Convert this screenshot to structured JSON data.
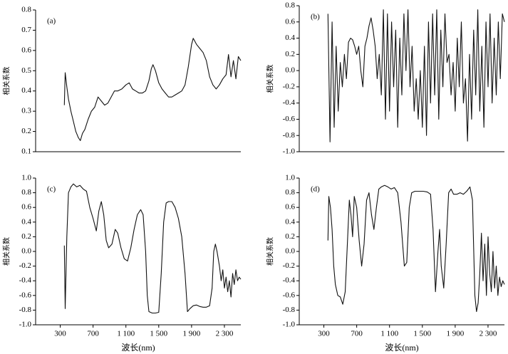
{
  "chart_data": [
    {
      "type": "line",
      "annotation": "(a)",
      "ylabel": "相关系数",
      "color": "#111111",
      "xlim": [
        0,
        2500
      ],
      "ylim": [
        0.1,
        0.8
      ],
      "yticks": [
        0.1,
        0.2,
        0.3,
        0.4,
        0.5,
        0.6,
        0.7,
        0.8
      ],
      "x": [
        350,
        360,
        380,
        400,
        430,
        460,
        490,
        520,
        545,
        570,
        600,
        640,
        680,
        720,
        760,
        800,
        840,
        880,
        920,
        960,
        1000,
        1050,
        1100,
        1140,
        1180,
        1220,
        1260,
        1300,
        1340,
        1380,
        1410,
        1430,
        1460,
        1500,
        1540,
        1580,
        1620,
        1660,
        1700,
        1740,
        1780,
        1820,
        1860,
        1900,
        1920,
        1960,
        2000,
        2040,
        2080,
        2120,
        2160,
        2200,
        2240,
        2280,
        2320,
        2350,
        2380,
        2410,
        2440,
        2470,
        2500
      ],
      "values": [
        0.33,
        0.49,
        0.42,
        0.36,
        0.3,
        0.25,
        0.2,
        0.17,
        0.155,
        0.19,
        0.21,
        0.26,
        0.3,
        0.32,
        0.37,
        0.35,
        0.33,
        0.34,
        0.37,
        0.4,
        0.4,
        0.41,
        0.43,
        0.44,
        0.41,
        0.4,
        0.39,
        0.39,
        0.4,
        0.45,
        0.51,
        0.53,
        0.5,
        0.44,
        0.41,
        0.39,
        0.37,
        0.37,
        0.38,
        0.39,
        0.4,
        0.43,
        0.52,
        0.63,
        0.66,
        0.63,
        0.61,
        0.59,
        0.55,
        0.47,
        0.43,
        0.41,
        0.43,
        0.46,
        0.48,
        0.58,
        0.47,
        0.55,
        0.46,
        0.57,
        0.55
      ]
    },
    {
      "type": "line",
      "annotation": "(b)",
      "ylabel": "相关系数",
      "color": "#111111",
      "xlim": [
        0,
        2500
      ],
      "ylim": [
        -1,
        0.8
      ],
      "yticks": [
        {
          "value": -1,
          "label": "-1.0"
        },
        -0.8,
        -0.6,
        -0.4,
        -0.2,
        {
          "value": 0,
          "label": "0.0"
        },
        0.2,
        0.4,
        0.6,
        0.8
      ],
      "x": [
        350,
        375,
        400,
        425,
        450,
        475,
        500,
        525,
        550,
        575,
        600,
        625,
        650,
        675,
        700,
        725,
        750,
        775,
        800,
        825,
        850,
        875,
        900,
        925,
        950,
        975,
        1000,
        1025,
        1050,
        1075,
        1100,
        1125,
        1150,
        1175,
        1200,
        1225,
        1250,
        1275,
        1300,
        1325,
        1350,
        1375,
        1400,
        1425,
        1450,
        1475,
        1500,
        1525,
        1550,
        1575,
        1600,
        1625,
        1650,
        1675,
        1700,
        1725,
        1750,
        1775,
        1800,
        1825,
        1850,
        1875,
        1900,
        1925,
        1950,
        1975,
        2000,
        2025,
        2050,
        2075,
        2100,
        2125,
        2150,
        2175,
        2200,
        2225,
        2250,
        2275,
        2300,
        2325,
        2350,
        2375,
        2400,
        2425,
        2450,
        2475,
        2500
      ],
      "values": [
        0.7,
        -0.88,
        0.6,
        -0.7,
        0.3,
        -0.5,
        0.1,
        -0.2,
        0.2,
        -0.1,
        0.35,
        0.4,
        0.38,
        0.3,
        0.2,
        0.3,
        0.0,
        -0.2,
        0.3,
        0.4,
        0.55,
        0.65,
        0.5,
        0.3,
        -0.1,
        0.2,
        -0.3,
        0.75,
        -0.6,
        0.7,
        -0.5,
        0.6,
        -0.2,
        0.5,
        -0.7,
        0.4,
        -0.3,
        0.7,
        0.0,
        0.75,
        -0.2,
        0.3,
        -0.5,
        -0.1,
        -0.6,
        0.0,
        -0.7,
        0.3,
        -0.8,
        0.6,
        -0.4,
        0.7,
        -0.3,
        0.75,
        -0.6,
        0.5,
        -0.2,
        0.7,
        0.1,
        0.2,
        -0.3,
        0.1,
        -0.5,
        0.4,
        -0.2,
        0.6,
        -0.4,
        -0.1,
        -0.87,
        0.2,
        -0.6,
        0.5,
        -0.3,
        0.75,
        -0.5,
        0.3,
        -0.7,
        0.6,
        -0.2,
        0.7,
        -0.4,
        0.4,
        -0.3,
        0.6,
        -0.1,
        0.7,
        0.6
      ]
    },
    {
      "type": "line",
      "annotation": "(c)",
      "ylabel": "相关系数",
      "xlabel": "波长(nm)",
      "color": "#111111",
      "xlim": [
        0,
        2500
      ],
      "xticks": [
        300,
        700,
        {
          "value": 1100,
          "label": "1 100"
        },
        {
          "value": 1500,
          "label": "1 500"
        },
        {
          "value": 1900,
          "label": "1 900"
        },
        {
          "value": 2300,
          "label": "2 300"
        }
      ],
      "ylim": [
        -1,
        1
      ],
      "yticks": [
        {
          "value": -1,
          "label": "-1.0"
        },
        -0.8,
        -0.6,
        -0.4,
        -0.2,
        {
          "value": 0,
          "label": "0.0"
        },
        0.2,
        0.4,
        0.6,
        0.8,
        {
          "value": 1,
          "label": "1.0"
        }
      ],
      "x": [
        350,
        360,
        380,
        400,
        430,
        460,
        500,
        540,
        580,
        620,
        660,
        700,
        740,
        770,
        800,
        830,
        860,
        890,
        930,
        970,
        1000,
        1040,
        1080,
        1120,
        1160,
        1200,
        1240,
        1280,
        1310,
        1340,
        1360,
        1380,
        1420,
        1460,
        1500,
        1530,
        1560,
        1590,
        1620,
        1660,
        1700,
        1740,
        1780,
        1820,
        1850,
        1880,
        1920,
        1960,
        2000,
        2040,
        2080,
        2120,
        2150,
        2170,
        2190,
        2210,
        2240,
        2260,
        2280,
        2300,
        2320,
        2340,
        2360,
        2380,
        2400,
        2420,
        2440,
        2460,
        2480,
        2500
      ],
      "values": [
        0.08,
        -0.78,
        0.2,
        0.8,
        0.88,
        0.92,
        0.88,
        0.9,
        0.85,
        0.82,
        0.6,
        0.45,
        0.28,
        0.55,
        0.68,
        0.5,
        0.15,
        0.05,
        0.1,
        0.3,
        0.25,
        0.05,
        -0.1,
        -0.13,
        0.05,
        0.3,
        0.5,
        0.57,
        0.5,
        0.0,
        -0.6,
        -0.82,
        -0.84,
        -0.84,
        -0.83,
        -0.3,
        0.4,
        0.66,
        0.68,
        0.68,
        0.6,
        0.45,
        0.2,
        -0.3,
        -0.82,
        -0.78,
        -0.74,
        -0.73,
        -0.75,
        -0.76,
        -0.76,
        -0.74,
        -0.5,
        0.0,
        0.1,
        0.0,
        -0.2,
        -0.4,
        -0.25,
        -0.5,
        -0.35,
        -0.55,
        -0.4,
        -0.62,
        -0.3,
        -0.45,
        -0.25,
        -0.4,
        -0.35,
        -0.38
      ]
    },
    {
      "type": "line",
      "annotation": "(d)",
      "ylabel": "相关系数",
      "xlabel": "波长(nm)",
      "color": "#111111",
      "xlim": [
        0,
        2500
      ],
      "xticks": [
        300,
        700,
        {
          "value": 1100,
          "label": "1 100"
        },
        {
          "value": 1500,
          "label": "1 500"
        },
        {
          "value": 1900,
          "label": "1 900"
        },
        {
          "value": 2300,
          "label": "2 300"
        }
      ],
      "ylim": [
        -1,
        1
      ],
      "yticks": [
        {
          "value": -1,
          "label": "-1.0"
        },
        -0.8,
        -0.6,
        -0.4,
        -0.2,
        {
          "value": 0,
          "label": "0.0"
        },
        0.2,
        0.4,
        0.6,
        0.8,
        {
          "value": 1,
          "label": "1.0"
        }
      ],
      "x": [
        350,
        360,
        380,
        400,
        420,
        440,
        470,
        500,
        530,
        560,
        590,
        610,
        630,
        650,
        670,
        700,
        730,
        760,
        790,
        820,
        850,
        880,
        910,
        940,
        970,
        1000,
        1040,
        1080,
        1120,
        1160,
        1200,
        1240,
        1280,
        1310,
        1340,
        1370,
        1410,
        1460,
        1510,
        1560,
        1600,
        1630,
        1660,
        1690,
        1710,
        1730,
        1760,
        1790,
        1820,
        1850,
        1880,
        1920,
        1960,
        2000,
        2040,
        2080,
        2110,
        2140,
        2160,
        2180,
        2200,
        2220,
        2240,
        2260,
        2280,
        2300,
        2320,
        2340,
        2360,
        2380,
        2400,
        2420,
        2440,
        2460,
        2480,
        2500
      ],
      "values": [
        0.15,
        0.75,
        0.6,
        0.3,
        -0.2,
        -0.45,
        -0.6,
        -0.62,
        -0.72,
        -0.55,
        0.2,
        0.7,
        0.5,
        0.2,
        0.75,
        0.6,
        0.15,
        -0.2,
        0.1,
        0.7,
        0.8,
        0.5,
        0.3,
        0.6,
        0.85,
        0.88,
        0.9,
        0.88,
        0.85,
        0.87,
        0.8,
        0.4,
        -0.2,
        -0.15,
        0.6,
        0.8,
        0.82,
        0.82,
        0.82,
        0.81,
        0.78,
        0.3,
        -0.55,
        0.0,
        0.3,
        -0.2,
        -0.5,
        0.1,
        0.8,
        0.85,
        0.78,
        0.78,
        0.8,
        0.78,
        0.82,
        0.88,
        0.7,
        -0.6,
        -0.82,
        -0.7,
        -0.3,
        0.25,
        -0.4,
        0.1,
        -0.6,
        0.2,
        -0.3,
        -0.55,
        0.0,
        -0.5,
        -0.2,
        -0.6,
        -0.35,
        -0.48,
        -0.4,
        -0.45
      ]
    }
  ]
}
